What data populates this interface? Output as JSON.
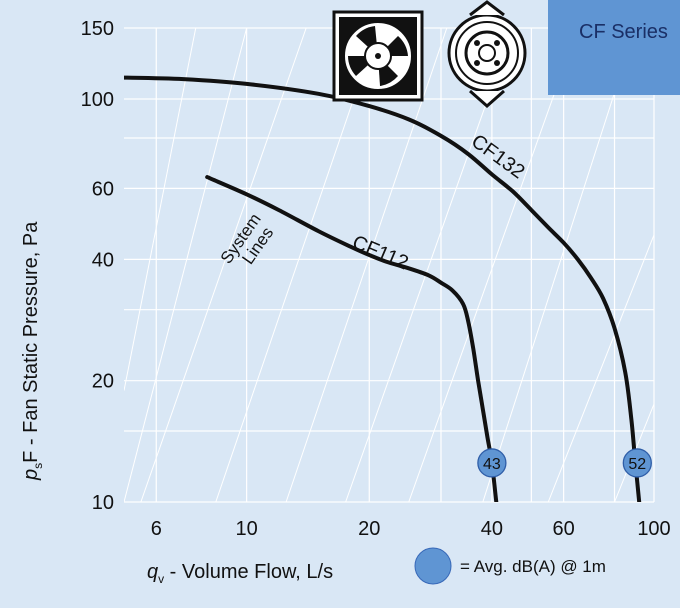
{
  "series_badge": "CF Series",
  "legend_text": "= Avg. dB(A) @ 1m",
  "colors": {
    "background": "#d9e7f5",
    "badge": "#5f95d3",
    "curve": "#111111",
    "grid": "#ffffff",
    "noise_circle": "#5f95d3"
  },
  "chart_data": {
    "type": "line",
    "x_scale": "log",
    "y_scale": "log",
    "xlim": [
      5,
      100
    ],
    "ylim": [
      10,
      150
    ],
    "xlabel_var": "q",
    "xlabel_sub": "v",
    "xlabel_text": " - Volume Flow, L/s",
    "ylabel_var": "p",
    "ylabel_sub": "s",
    "ylabel_text": "F - Fan Static Pressure, Pa",
    "x_ticks": [
      6,
      10,
      20,
      40,
      60,
      100
    ],
    "y_ticks": [
      10,
      20,
      40,
      60,
      100,
      150
    ],
    "x_grid": [
      6,
      10,
      20,
      30,
      40,
      50,
      60,
      80,
      100
    ],
    "y_grid": [
      10,
      15,
      20,
      30,
      40,
      60,
      80,
      100,
      150
    ],
    "grid": true,
    "system_lines_label": [
      "System",
      "Lines"
    ],
    "system_lines": [
      {
        "x": [
          5,
          7.5
        ],
        "y": [
          18.9,
          150
        ]
      },
      {
        "x": [
          5,
          10
        ],
        "y": [
          10,
          150
        ]
      },
      {
        "x": [
          5.5,
          14
        ],
        "y": [
          10,
          150
        ]
      },
      {
        "x": [
          8.4,
          21
        ],
        "y": [
          10,
          150
        ]
      },
      {
        "x": [
          12.5,
          31
        ],
        "y": [
          10,
          150
        ]
      },
      {
        "x": [
          17.5,
          45
        ],
        "y": [
          10,
          150
        ]
      },
      {
        "x": [
          25,
          65
        ],
        "y": [
          10,
          150
        ]
      },
      {
        "x": [
          38,
          90
        ],
        "y": [
          10,
          150
        ]
      },
      {
        "x": [
          55,
          100
        ],
        "y": [
          10,
          46
        ]
      },
      {
        "x": [
          80,
          100
        ],
        "y": [
          10,
          17.5
        ]
      }
    ],
    "series": [
      {
        "name": "CF132",
        "noise_dba": "52",
        "noise_at": {
          "x": 91,
          "y": 12.5
        },
        "x": [
          5,
          7,
          10,
          15,
          20,
          25,
          30,
          35,
          40,
          45,
          50,
          55,
          60,
          65,
          70,
          75,
          80,
          85,
          88,
          90,
          92
        ],
        "y": [
          113,
          112,
          109,
          103,
          96,
          89,
          81,
          73,
          65,
          59,
          53,
          48,
          44,
          40,
          36,
          32,
          27,
          21,
          16,
          12.5,
          10
        ]
      },
      {
        "name": "CF112",
        "noise_dba": "43",
        "noise_at": {
          "x": 40,
          "y": 12.5
        },
        "x": [
          8,
          10,
          12,
          15,
          18,
          20,
          22,
          25,
          28,
          30,
          32,
          34,
          35,
          36,
          37,
          38,
          39,
          40,
          41
        ],
        "y": [
          64,
          58,
          53,
          47,
          43,
          41,
          39.5,
          38,
          36.5,
          35,
          33.5,
          31,
          28,
          24,
          20,
          17,
          14.5,
          12.5,
          10
        ]
      }
    ]
  }
}
